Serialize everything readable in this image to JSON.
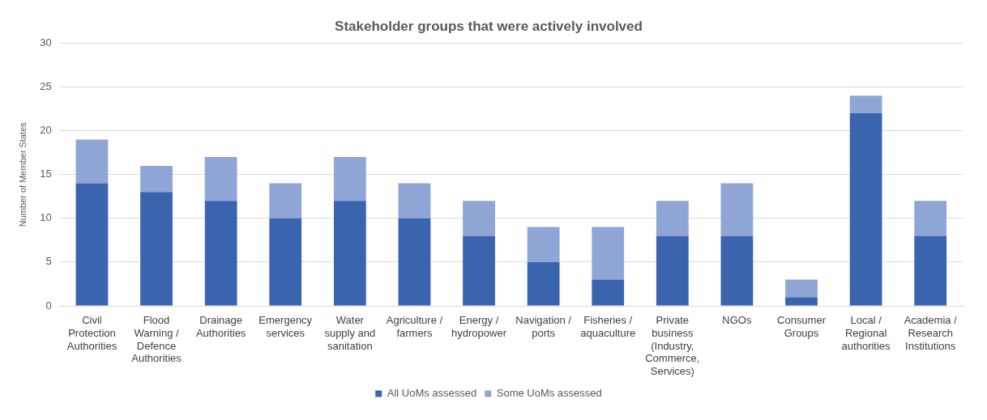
{
  "chart_data": {
    "type": "bar",
    "title": "Stakeholder groups that were actively involved",
    "ylabel": "Number of Member States",
    "categories": [
      "Civil Protection Authorities",
      "Flood Warning / Defence Authorities",
      "Drainage Authorities",
      "Emergency services",
      "Water supply and sanitation",
      "Agriculture / farmers",
      "Energy / hydropower",
      "Navigation / ports",
      "Fisheries / aquaculture",
      "Private business (Industry, Commerce, Services)",
      "NGOs",
      "Consumer Groups",
      "Local / Regional authorities",
      "Academia / Research Institutions"
    ],
    "series": [
      {
        "name": "All UoMs assessed",
        "color": "#3a64ae",
        "values": [
          14,
          13,
          12,
          10,
          12,
          10,
          8,
          5,
          3,
          8,
          8,
          1,
          22,
          8
        ]
      },
      {
        "name": "Some UoMs assessed",
        "color": "#8fa5d6",
        "values": [
          5,
          3,
          5,
          4,
          5,
          4,
          4,
          4,
          6,
          4,
          6,
          2,
          2,
          4
        ]
      }
    ],
    "stacked": true,
    "ylim": [
      0,
      30
    ],
    "yticks": [
      0,
      5,
      10,
      15,
      20,
      25,
      30
    ],
    "grid": "y",
    "legend": "bottom"
  }
}
